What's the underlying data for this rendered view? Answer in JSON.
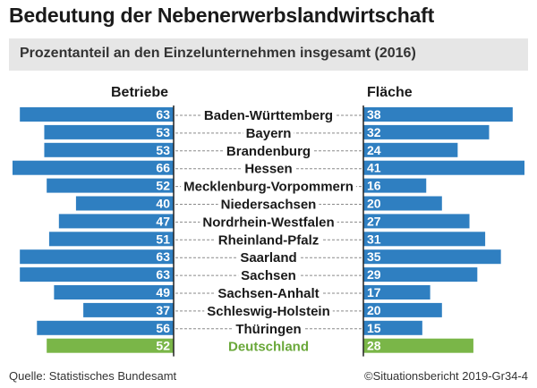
{
  "header": {
    "title": "Bedeutung der Nebenerwerbslandwirtschaft",
    "subtitle": "Prozentanteil an den Einzelunternehmen insgesamt (2016)"
  },
  "columns": {
    "left": "Betriebe",
    "right": "Fläche"
  },
  "footer": {
    "source": "Quelle: Statistisches Bundesamt",
    "credit": "©Situationsbericht 2019-Gr34-4"
  },
  "colors": {
    "bar": "#2f7fc1",
    "total": "#7ab648",
    "label": "#1a1a1a",
    "total_label": "#6aa83a"
  },
  "chart_data": {
    "type": "bar",
    "orientation": "horizontal-butterfly",
    "title": "Bedeutung der Nebenerwerbslandwirtschaft",
    "subtitle": "Prozentanteil an den Einzelunternehmen insgesamt (2016)",
    "categories": [
      "Baden-Württemberg",
      "Bayern",
      "Brandenburg",
      "Hessen",
      "Mecklenburg-Vorpommern",
      "Niedersachsen",
      "Nordrhein-Westfalen",
      "Rheinland-Pfalz",
      "Saarland",
      "Sachsen",
      "Sachsen-Anhalt",
      "Schleswig-Holstein",
      "Thüringen",
      "Deutschland"
    ],
    "series": [
      {
        "name": "Betriebe",
        "values": [
          63,
          53,
          53,
          66,
          52,
          40,
          47,
          51,
          63,
          63,
          49,
          37,
          56,
          52
        ]
      },
      {
        "name": "Fläche",
        "values": [
          38,
          32,
          24,
          41,
          16,
          20,
          27,
          31,
          35,
          29,
          17,
          20,
          15,
          28
        ]
      }
    ],
    "highlight": "Deutschland"
  }
}
